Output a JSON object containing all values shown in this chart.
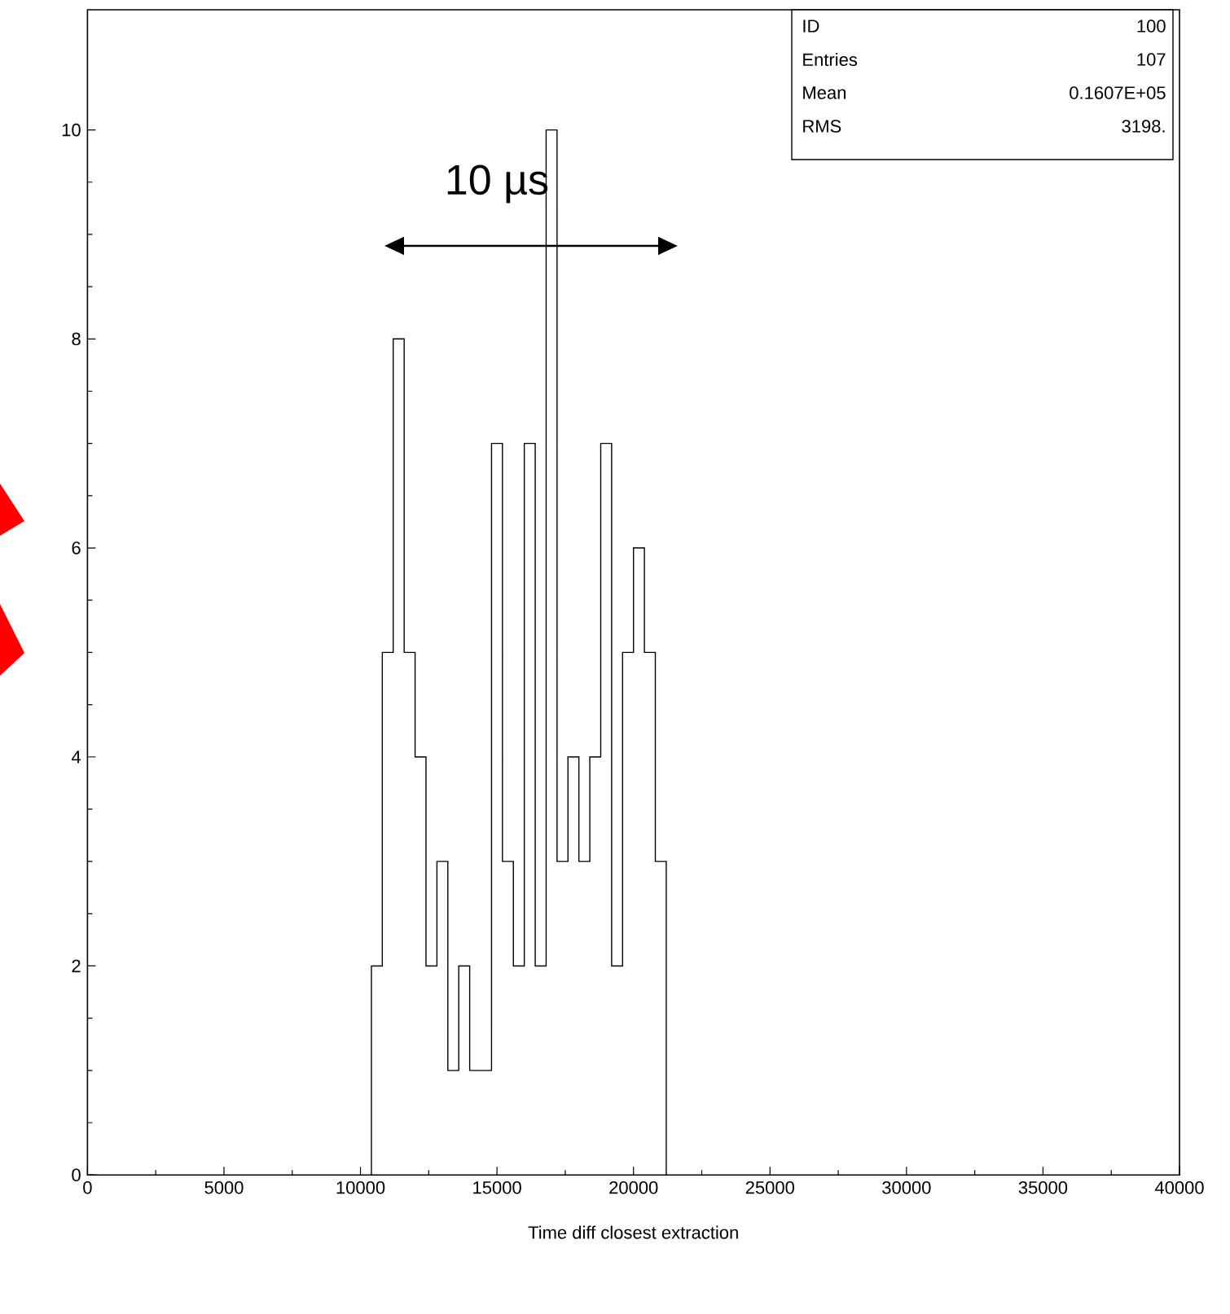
{
  "chart_data": {
    "type": "histogram",
    "xlabel": "Time diff closest extraction",
    "bins": [
      10400,
      10800,
      11200,
      11600,
      12000,
      12400,
      12800,
      13200,
      13600,
      14000,
      14400,
      14800,
      15200,
      15600,
      16000,
      16400,
      16800,
      17200,
      17600,
      18000,
      18400,
      18800,
      19200,
      19600,
      20000,
      20400,
      20800,
      21200
    ],
    "values": [
      2,
      5,
      8,
      5,
      4,
      2,
      3,
      1,
      2,
      1,
      1,
      7,
      3,
      2,
      7,
      2,
      10,
      3,
      4,
      3,
      4,
      7,
      2,
      5,
      6,
      5,
      3
    ],
    "color": "#000000",
    "xlim": [
      0,
      40000
    ],
    "ylim": [
      0,
      11.15
    ],
    "xticks": [
      0,
      5000,
      10000,
      15000,
      20000,
      25000,
      30000,
      35000,
      40000
    ],
    "yticks": [
      0,
      2,
      4,
      6,
      8,
      10
    ],
    "grid": false,
    "annotations": [
      "10 µs",
      "ID",
      "100",
      "Entries",
      "107",
      "Mean",
      "0.1607E+05",
      "RMS",
      "3198."
    ]
  }
}
